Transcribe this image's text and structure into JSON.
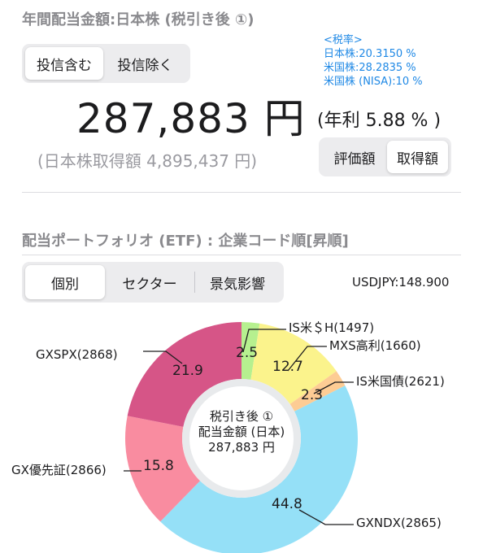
{
  "dividend_section": {
    "title": "年間配当金額:日本株 (税引き後 ①)",
    "toggle_include": "投信含む",
    "toggle_exclude": "投信除く",
    "amount": "287,883 円",
    "yield": "(年利 5.88 % )",
    "cost_basis": "(日本株取得額 4,895,437 円)",
    "basis_valuation": "評価額",
    "basis_cost": "取得額"
  },
  "tax_rates": {
    "header": "<税率>",
    "jp": "日本株:20.3150 %",
    "us": "米国株:28.2835 %",
    "nisa": "米国株 (NISA):10 %"
  },
  "portfolio_section": {
    "title": "配当ポートフォリオ (ETF) : 企業コード順[昇順]",
    "tab_individual": "個別",
    "tab_sector": "セクター",
    "tab_sentiment": "景気影響",
    "fx_rate": "USDJPY:148.900"
  },
  "chart_data": {
    "type": "pie",
    "style": "donut",
    "center_text": [
      "税引き後 ①",
      "配当金額 (日本)",
      "287,883 円"
    ],
    "slices": [
      {
        "label": "IS米＄H(1497)",
        "value": 2.5,
        "value_label": "2.5",
        "color": "#b6f08f"
      },
      {
        "label": "MXS高利(1660)",
        "value": 12.7,
        "value_label": "12.7",
        "color": "#fbf38c"
      },
      {
        "label": "IS米国債(2621)",
        "value": 2.3,
        "value_label": "2.3",
        "color": "#fdcc94"
      },
      {
        "label": "GXNDX(2865)",
        "value": 44.8,
        "value_label": "44.8",
        "color": "#95e0f7"
      },
      {
        "label": "GX優先証(2866)",
        "value": 15.8,
        "value_label": "15.8",
        "color": "#f98ca0"
      },
      {
        "label": "GXSPX(2868)",
        "value": 21.9,
        "value_label": "21.9",
        "color": "#d65587"
      }
    ]
  }
}
